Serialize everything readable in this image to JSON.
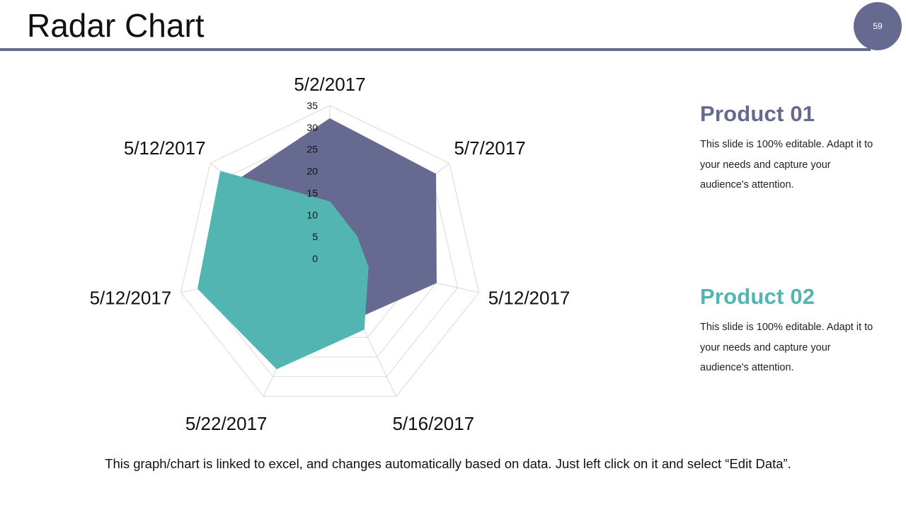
{
  "slide": {
    "title": "Radar Chart",
    "page_number": "59",
    "footer": "This graph/chart is linked to excel, and changes automatically based on data. Just left click on it and select “Edit Data”."
  },
  "legend": [
    {
      "name": "Product 01",
      "text": "This slide is 100% editable. Adapt it to your needs and capture your audience's attention.",
      "color": "#666a91"
    },
    {
      "name": "Product 02",
      "text": "This slide is 100% editable. Adapt it to your needs and capture your audience's attention.",
      "color": "#52b5b2"
    }
  ],
  "colors": {
    "accent": "#666a91",
    "product1": "#666a91",
    "product2": "#52b5b2",
    "grid": "#d9d9d9"
  },
  "chart_data": {
    "type": "radar",
    "title": "",
    "categories": [
      "5/2/2017",
      "5/7/2017",
      "5/12/2017",
      "5/16/2017",
      "5/22/2017",
      "5/12/2017",
      "5/12/2017"
    ],
    "radial_ticks": [
      "0",
      "5",
      "10",
      "15",
      "20",
      "25",
      "30",
      "35"
    ],
    "rlim": [
      0,
      35
    ],
    "grid": true,
    "series": [
      {
        "name": "Product 01",
        "values": [
          32,
          31,
          25,
          15,
          5,
          10,
          28
        ]
      },
      {
        "name": "Product 02",
        "values": [
          13,
          8,
          9,
          18,
          28,
          31,
          32
        ]
      }
    ]
  }
}
